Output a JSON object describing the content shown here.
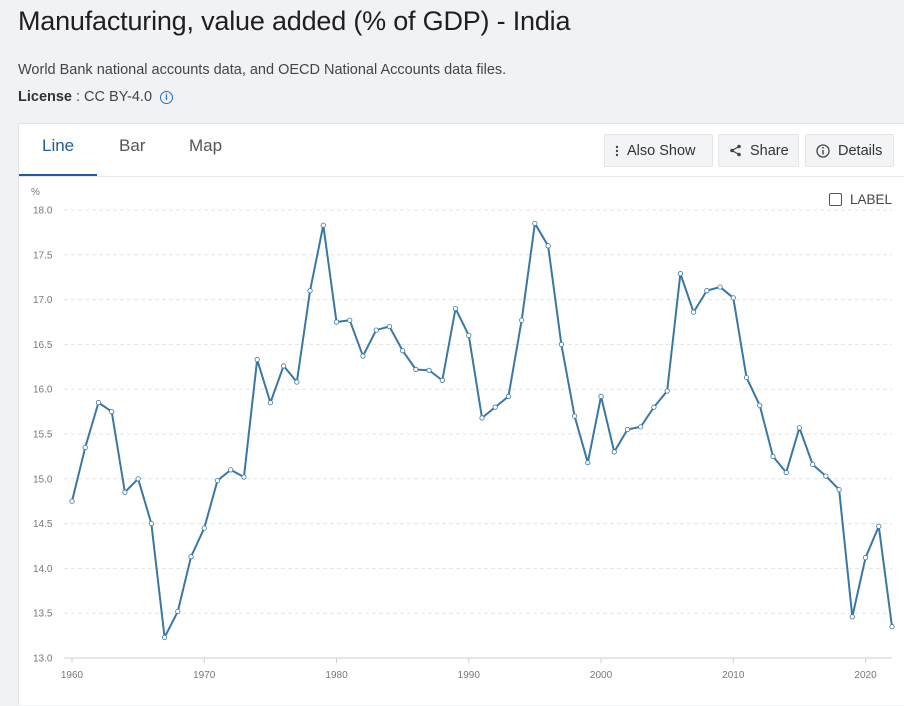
{
  "header": {
    "title": "Manufacturing, value added (% of GDP) - India",
    "source": "World Bank national accounts data, and OECD National Accounts data files.",
    "license_label": "License",
    "license_value": ": CC BY-4.0"
  },
  "tabs": [
    {
      "label": "Line"
    },
    {
      "label": "Bar"
    },
    {
      "label": "Map"
    }
  ],
  "toolbar": {
    "also_show": "Also Show",
    "share": "Share",
    "details": "Details"
  },
  "label_toggle": "LABEL",
  "colors": {
    "line": "#3a77a3",
    "accent": "#1d5f9a",
    "grid": "#e3e3e3"
  },
  "chart_data": {
    "type": "line",
    "ylabel": "%",
    "ylim": [
      13.0,
      18.0
    ],
    "xlim": [
      1960,
      2022
    ],
    "yticks": [
      13.0,
      13.5,
      14.0,
      14.5,
      15.0,
      15.5,
      16.0,
      16.5,
      17.0,
      17.5,
      18.0
    ],
    "xticks": [
      1960,
      1970,
      1980,
      1990,
      2000,
      2010,
      2020
    ],
    "grid": true,
    "series": [
      {
        "name": "",
        "x": [
          1960,
          1961,
          1962,
          1963,
          1964,
          1965,
          1966,
          1967,
          1968,
          1969,
          1970,
          1971,
          1972,
          1973,
          1974,
          1975,
          1976,
          1977,
          1978,
          1979,
          1980,
          1981,
          1982,
          1983,
          1984,
          1985,
          1986,
          1987,
          1988,
          1989,
          1990,
          1991,
          1992,
          1993,
          1994,
          1995,
          1996,
          1997,
          1998,
          1999,
          2000,
          2001,
          2002,
          2003,
          2004,
          2005,
          2006,
          2007,
          2008,
          2009,
          2010,
          2011,
          2012,
          2013,
          2014,
          2015,
          2016,
          2017,
          2018,
          2019,
          2020,
          2021,
          2022
        ],
        "values": [
          14.75,
          15.35,
          15.85,
          15.75,
          14.85,
          15.0,
          14.5,
          13.23,
          13.52,
          14.13,
          14.45,
          14.98,
          15.1,
          15.02,
          16.33,
          15.85,
          16.26,
          16.08,
          17.1,
          17.83,
          16.75,
          16.77,
          16.37,
          16.66,
          16.7,
          16.43,
          16.22,
          16.21,
          16.1,
          16.9,
          16.6,
          15.68,
          15.8,
          15.92,
          16.77,
          17.85,
          17.6,
          16.5,
          15.7,
          15.18,
          15.92,
          15.3,
          15.55,
          15.58,
          15.8,
          15.98,
          17.29,
          16.86,
          17.1,
          17.14,
          17.02,
          16.13,
          15.82,
          15.25,
          15.07,
          15.57,
          15.16,
          15.03,
          14.88,
          13.46,
          14.12,
          14.47,
          13.35
        ]
      }
    ]
  }
}
